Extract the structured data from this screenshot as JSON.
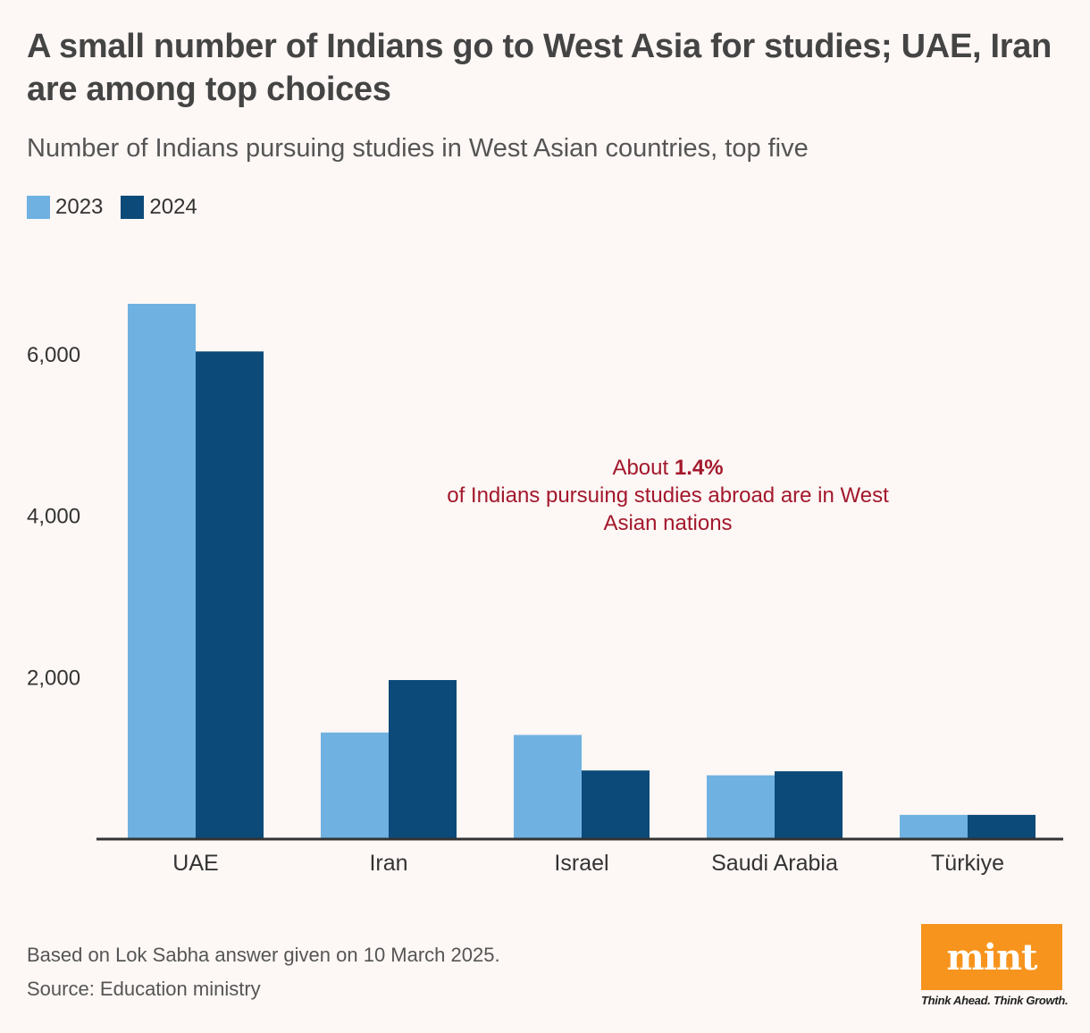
{
  "colors": {
    "series_2023": "#6fb1e1",
    "series_2024": "#0c4a79",
    "annotation": "#a3182c",
    "axis": "#333333",
    "logo_bg": "#f7941d",
    "background": "#fdf7f5"
  },
  "header": {
    "title": "A small number of Indians go to West Asia for studies; UAE, Iran are among top choices",
    "subtitle": "Number of Indians pursuing studies in West Asian countries, top five"
  },
  "annotation": {
    "prefix": "About ",
    "highlight": "1.4%",
    "text": "of Indians pursuing studies abroad are in West Asian nations"
  },
  "chart_data": {
    "type": "bar",
    "title": "A small number of Indians go to West Asia for studies; UAE, Iran are among top choices",
    "subtitle": "Number of Indians pursuing studies in West Asian countries, top five",
    "xlabel": "",
    "ylabel": "",
    "categories": [
      "UAE",
      "Iran",
      "Israel",
      "Saudi Arabia",
      "Türkiye"
    ],
    "series": [
      {
        "name": "2023",
        "values": [
          6630,
          1320,
          1290,
          790,
          300
        ]
      },
      {
        "name": "2024",
        "values": [
          6040,
          1970,
          850,
          840,
          300
        ]
      }
    ],
    "y_ticks": [
      2000,
      4000,
      6000
    ],
    "y_tick_labels": [
      "2,000",
      "4,000",
      "6,000"
    ],
    "ylim": [
      0,
      7100
    ],
    "grid": false,
    "legend": "top-left"
  },
  "footer": {
    "note": "Based on Lok Sabha answer given on 10 March 2025.",
    "source": "Source: Education ministry",
    "brand": "mint",
    "tagline": "Think Ahead. Think Growth."
  }
}
